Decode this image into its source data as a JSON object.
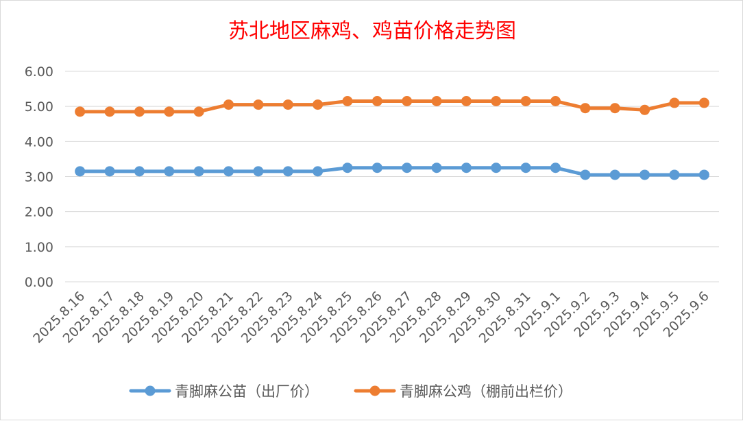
{
  "chart_data": {
    "type": "line",
    "title": "苏北地区麻鸡、鸡苗价格走势图",
    "xlabel": "",
    "ylabel": "",
    "ylim": [
      0,
      6
    ],
    "yticks": [
      "0.00",
      "1.00",
      "2.00",
      "3.00",
      "4.00",
      "5.00",
      "6.00"
    ],
    "grid": true,
    "legend_position": "bottom",
    "categories": [
      "2025.8.16",
      "2025.8.17",
      "2025.8.18",
      "2025.8.19",
      "2025.8.20",
      "2025.8.21",
      "2025.8.22",
      "2025.8.23",
      "2025.8.24",
      "2025.8.25",
      "2025.8.26",
      "2025.8.27",
      "2025.8.28",
      "2025.8.29",
      "2025.8.30",
      "2025.8.31",
      "2025.9.1",
      "2025.9.2",
      "2025.9.3",
      "2025.9.4",
      "2025.9.5",
      "2025.9.6"
    ],
    "series": [
      {
        "name": "青脚麻公苗（出厂价）",
        "color": "#5b9bd5",
        "values": [
          3.15,
          3.15,
          3.15,
          3.15,
          3.15,
          3.15,
          3.15,
          3.15,
          3.15,
          3.25,
          3.25,
          3.25,
          3.25,
          3.25,
          3.25,
          3.25,
          3.25,
          3.05,
          3.05,
          3.05,
          3.05,
          3.05
        ]
      },
      {
        "name": "青脚麻公鸡（棚前出栏价）",
        "color": "#ed7d31",
        "values": [
          4.85,
          4.85,
          4.85,
          4.85,
          4.85,
          5.05,
          5.05,
          5.05,
          5.05,
          5.15,
          5.15,
          5.15,
          5.15,
          5.15,
          5.15,
          5.15,
          5.15,
          4.95,
          4.95,
          4.9,
          5.1,
          5.1
        ]
      }
    ]
  }
}
